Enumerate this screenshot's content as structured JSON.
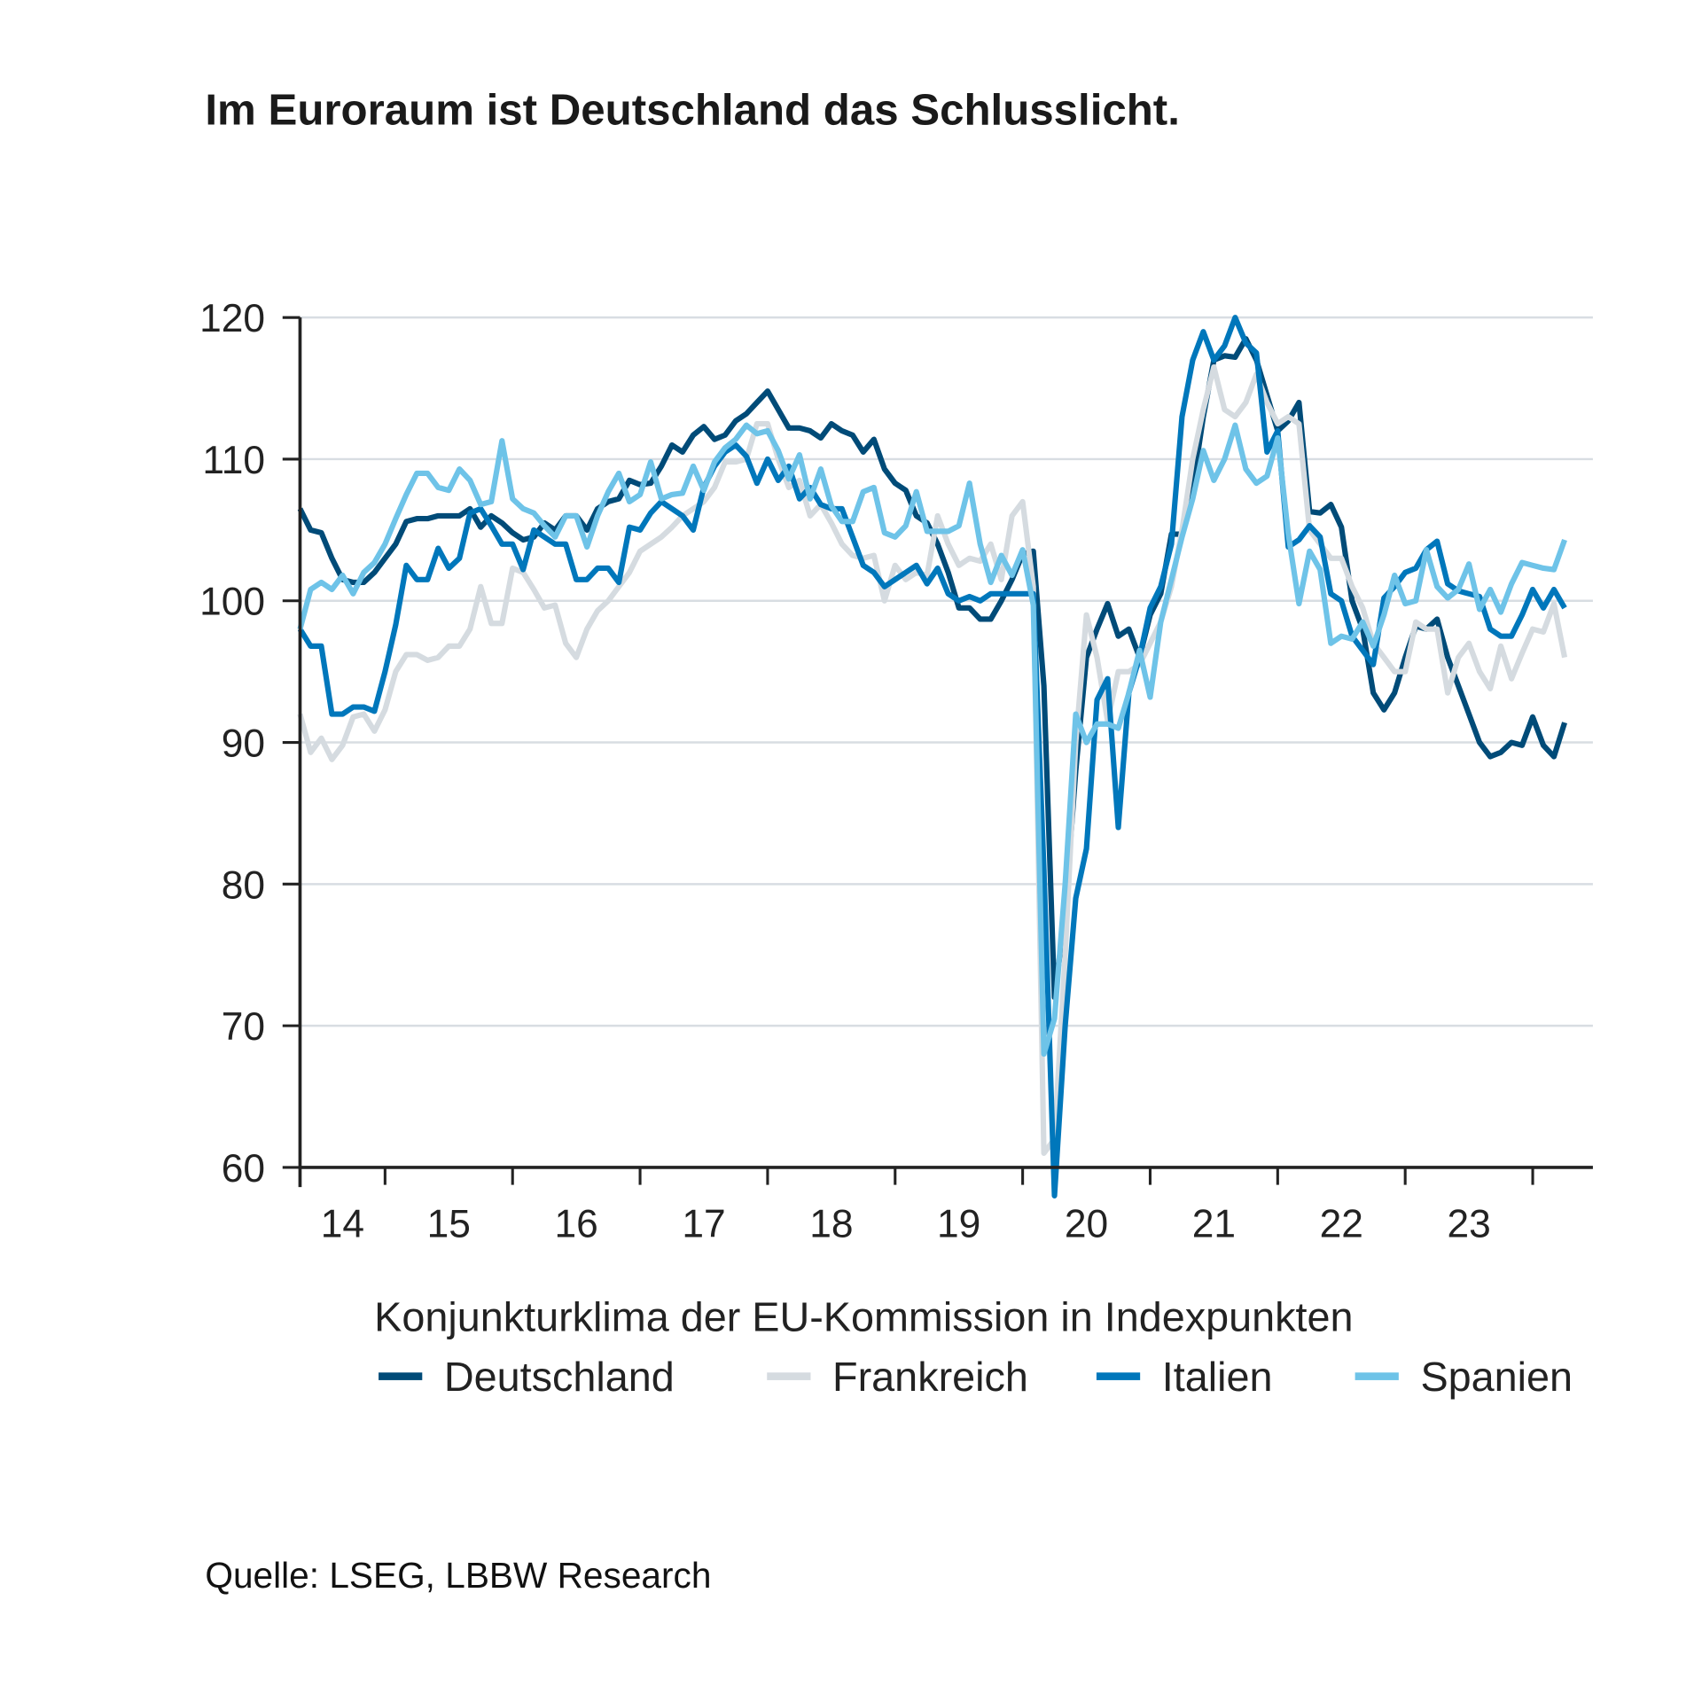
{
  "title": "Im Euroraum ist Deutschland das Schlusslicht.",
  "source": "Quelle: LSEG, LBBW Research",
  "chart_data": {
    "type": "line",
    "title": "Im Euroraum ist Deutschland das Schlusslicht.",
    "subtitle": "Konjunkturklima der EU-Kommission in Indexpunkten",
    "xlabel": "",
    "ylabel": "",
    "ylim": [
      60,
      120
    ],
    "yticks": [
      "60",
      "70",
      "80",
      "90",
      "100",
      "110",
      "120"
    ],
    "xtick_labels": [
      "14",
      "15",
      "16",
      "17",
      "18",
      "19",
      "20",
      "21",
      "22",
      "23"
    ],
    "grid": "horizontal",
    "legend_position": "bottom",
    "x": [
      "2014-05",
      "2014-06",
      "2014-07",
      "2014-08",
      "2014-09",
      "2014-10",
      "2014-11",
      "2014-12",
      "2015-01",
      "2015-02",
      "2015-03",
      "2015-04",
      "2015-05",
      "2015-06",
      "2015-07",
      "2015-08",
      "2015-09",
      "2015-10",
      "2015-11",
      "2015-12",
      "2016-01",
      "2016-02",
      "2016-03",
      "2016-04",
      "2016-05",
      "2016-06",
      "2016-07",
      "2016-08",
      "2016-09",
      "2016-10",
      "2016-11",
      "2016-12",
      "2017-01",
      "2017-02",
      "2017-03",
      "2017-04",
      "2017-05",
      "2017-06",
      "2017-07",
      "2017-08",
      "2017-09",
      "2017-10",
      "2017-11",
      "2017-12",
      "2018-01",
      "2018-02",
      "2018-03",
      "2018-04",
      "2018-05",
      "2018-06",
      "2018-07",
      "2018-08",
      "2018-09",
      "2018-10",
      "2018-11",
      "2018-12",
      "2019-01",
      "2019-02",
      "2019-03",
      "2019-04",
      "2019-05",
      "2019-06",
      "2019-07",
      "2019-08",
      "2019-09",
      "2019-10",
      "2019-11",
      "2019-12",
      "2020-01",
      "2020-02",
      "2020-03",
      "2020-04",
      "2020-05",
      "2020-06",
      "2020-07",
      "2020-08",
      "2020-09",
      "2020-10",
      "2020-11",
      "2020-12",
      "2021-01",
      "2021-02",
      "2021-03",
      "2021-04",
      "2021-05",
      "2021-06",
      "2021-07",
      "2021-08",
      "2021-09",
      "2021-10",
      "2021-11",
      "2021-12",
      "2022-01",
      "2022-02",
      "2022-03",
      "2022-04",
      "2022-05",
      "2022-06",
      "2022-07",
      "2022-08",
      "2022-09",
      "2022-10",
      "2022-11",
      "2022-12",
      "2023-01",
      "2023-02",
      "2023-03",
      "2023-04",
      "2023-05",
      "2023-06",
      "2023-07",
      "2023-08",
      "2023-09",
      "2023-10",
      "2023-11",
      "2023-12",
      "2024-01",
      "2024-02",
      "2024-03",
      "2024-04"
    ],
    "series": [
      {
        "name": "Deutschland",
        "color": "#004b78",
        "values": [
          106.5,
          105,
          104.8,
          103,
          101.5,
          101.3,
          101.3,
          102,
          103,
          104,
          105.6,
          105.8,
          105.8,
          106,
          106,
          106,
          106.5,
          105.2,
          106,
          105.5,
          104.8,
          104.3,
          104.5,
          105.5,
          105,
          106,
          106,
          105,
          106.5,
          107,
          107.2,
          108.5,
          108.2,
          108.3,
          109.5,
          111,
          110.5,
          111.7,
          112.3,
          111.4,
          111.7,
          112.7,
          113.2,
          114,
          114.8,
          113.5,
          112.2,
          112.2,
          112,
          111.5,
          112.5,
          112,
          111.7,
          110.5,
          111.4,
          109.3,
          108.3,
          107.8,
          106,
          105.5,
          104,
          102,
          99.5,
          99.5,
          98.7,
          98.7,
          100,
          101.5,
          103.3,
          103.5,
          94,
          72,
          78,
          88,
          96,
          98,
          99.8,
          97.5,
          98,
          96,
          99,
          100.5,
          104.7,
          104.7,
          108,
          113,
          117,
          117.3,
          117.2,
          118.5,
          117,
          114.5,
          112,
          112.7,
          114,
          106.3,
          106.2,
          106.8,
          105.2,
          100,
          98,
          93.5,
          92.3,
          93.5,
          96,
          98.2,
          98,
          98.7,
          96,
          94,
          92,
          90,
          89,
          89.3,
          90,
          89.8,
          91.8,
          89.8,
          89,
          91.4
        ]
      },
      {
        "name": "Frankreich",
        "color": "#d5dbe0",
        "values": [
          92,
          89.3,
          90.3,
          88.8,
          89.8,
          91.8,
          92,
          90.8,
          92.3,
          95,
          96.2,
          96.2,
          95.8,
          96,
          96.8,
          96.8,
          98,
          101,
          98.4,
          98.4,
          102.3,
          102,
          100.8,
          99.5,
          99.7,
          97,
          96,
          98,
          99.3,
          100,
          101,
          102,
          103.5,
          104,
          104.5,
          105.2,
          106,
          106.5,
          107,
          108,
          109.8,
          109.8,
          110,
          112.5,
          112.5,
          110,
          108,
          108.5,
          106,
          106.8,
          105.5,
          104,
          103.2,
          103,
          103.2,
          100,
          102.5,
          101.5,
          102,
          101.8,
          106,
          104,
          102.5,
          103,
          102.8,
          104,
          101.5,
          106,
          107,
          101,
          61,
          62,
          75,
          90,
          99,
          96,
          91.5,
          95,
          95,
          95.5,
          97,
          98.5,
          101,
          105,
          110,
          113.5,
          116.5,
          113.5,
          113,
          114,
          116,
          114,
          112.5,
          113,
          112.5,
          105,
          104,
          103,
          103,
          101,
          99.5,
          97,
          96,
          95,
          95,
          98.5,
          98,
          98,
          93.5,
          96,
          97,
          95,
          93.8,
          96.8,
          94.5,
          96.3,
          98,
          97.8,
          99.8,
          96
        ]
      },
      {
        "name": "Italien",
        "color": "#0077bb",
        "values": [
          98,
          96.8,
          96.8,
          92,
          92,
          92.5,
          92.5,
          92.2,
          95,
          98.3,
          102.5,
          101.5,
          101.5,
          103.7,
          102.3,
          103,
          106.2,
          106.5,
          105.3,
          104,
          104,
          102.2,
          105,
          104.5,
          104,
          104,
          101.5,
          101.5,
          102.3,
          102.3,
          101.3,
          105.2,
          105,
          106.2,
          107,
          106.5,
          106,
          105,
          108,
          109.5,
          110.5,
          111,
          110.2,
          108.3,
          110,
          108.5,
          109.5,
          107.2,
          108,
          106.8,
          106.5,
          106.5,
          104.5,
          102.5,
          102,
          101,
          101.5,
          102,
          102.5,
          101.2,
          102.3,
          100.5,
          100,
          100.3,
          100,
          100.5,
          100.5,
          100.5,
          100.5,
          100.5,
          81,
          58,
          70,
          79,
          82.5,
          93,
          94.5,
          84,
          93.5,
          96,
          99.5,
          101,
          104,
          113,
          117,
          119,
          117,
          118,
          120,
          118.2,
          117.5,
          110.5,
          112,
          103.8,
          104.3,
          105.3,
          104.5,
          100.5,
          100,
          97.5,
          96.5,
          95.5,
          100.2,
          101,
          102,
          102.3,
          103.6,
          104.2,
          101.2,
          100.7,
          100.5,
          100.3,
          98,
          97.5,
          97.5,
          99,
          100.8,
          99.5,
          100.8,
          99.5
        ]
      },
      {
        "name": "Spanien",
        "color": "#6ec3e8",
        "values": [
          98,
          100.8,
          101.3,
          100.8,
          101.8,
          100.5,
          102,
          102.7,
          104,
          105.8,
          107.5,
          109,
          109,
          108,
          107.8,
          109.3,
          108.5,
          106.8,
          107,
          111.3,
          107.2,
          106.5,
          106.2,
          105.3,
          104.5,
          106,
          106,
          103.8,
          106,
          107.7,
          109,
          107,
          107.5,
          109.8,
          107.2,
          107.5,
          107.6,
          109.5,
          107.8,
          109.8,
          110.8,
          111.4,
          112.4,
          111.8,
          112,
          110.6,
          108.6,
          110.3,
          107.2,
          109.3,
          106.7,
          105.6,
          105.6,
          107.7,
          108,
          104.8,
          104.5,
          105.3,
          107.7,
          104.9,
          104.9,
          104.9,
          105.3,
          108.3,
          104,
          101.3,
          103.2,
          101.8,
          103.6,
          99.7,
          68,
          70.5,
          80,
          92,
          90,
          91.3,
          91.3,
          91,
          93.5,
          96.5,
          93.2,
          98.5,
          101.5,
          104.5,
          107.2,
          110.6,
          108.5,
          110,
          112.4,
          109.3,
          108.3,
          108.8,
          111.5,
          104.7,
          99.8,
          103.5,
          102.2,
          97,
          97.5,
          97.3,
          98.5,
          96.8,
          99,
          101.8,
          99.8,
          100,
          103.6,
          101,
          100.2,
          100.8,
          102.6,
          99.4,
          100.8,
          99.2,
          101.2,
          102.7,
          102.5,
          102.3,
          102.2,
          104.3
        ]
      }
    ]
  }
}
